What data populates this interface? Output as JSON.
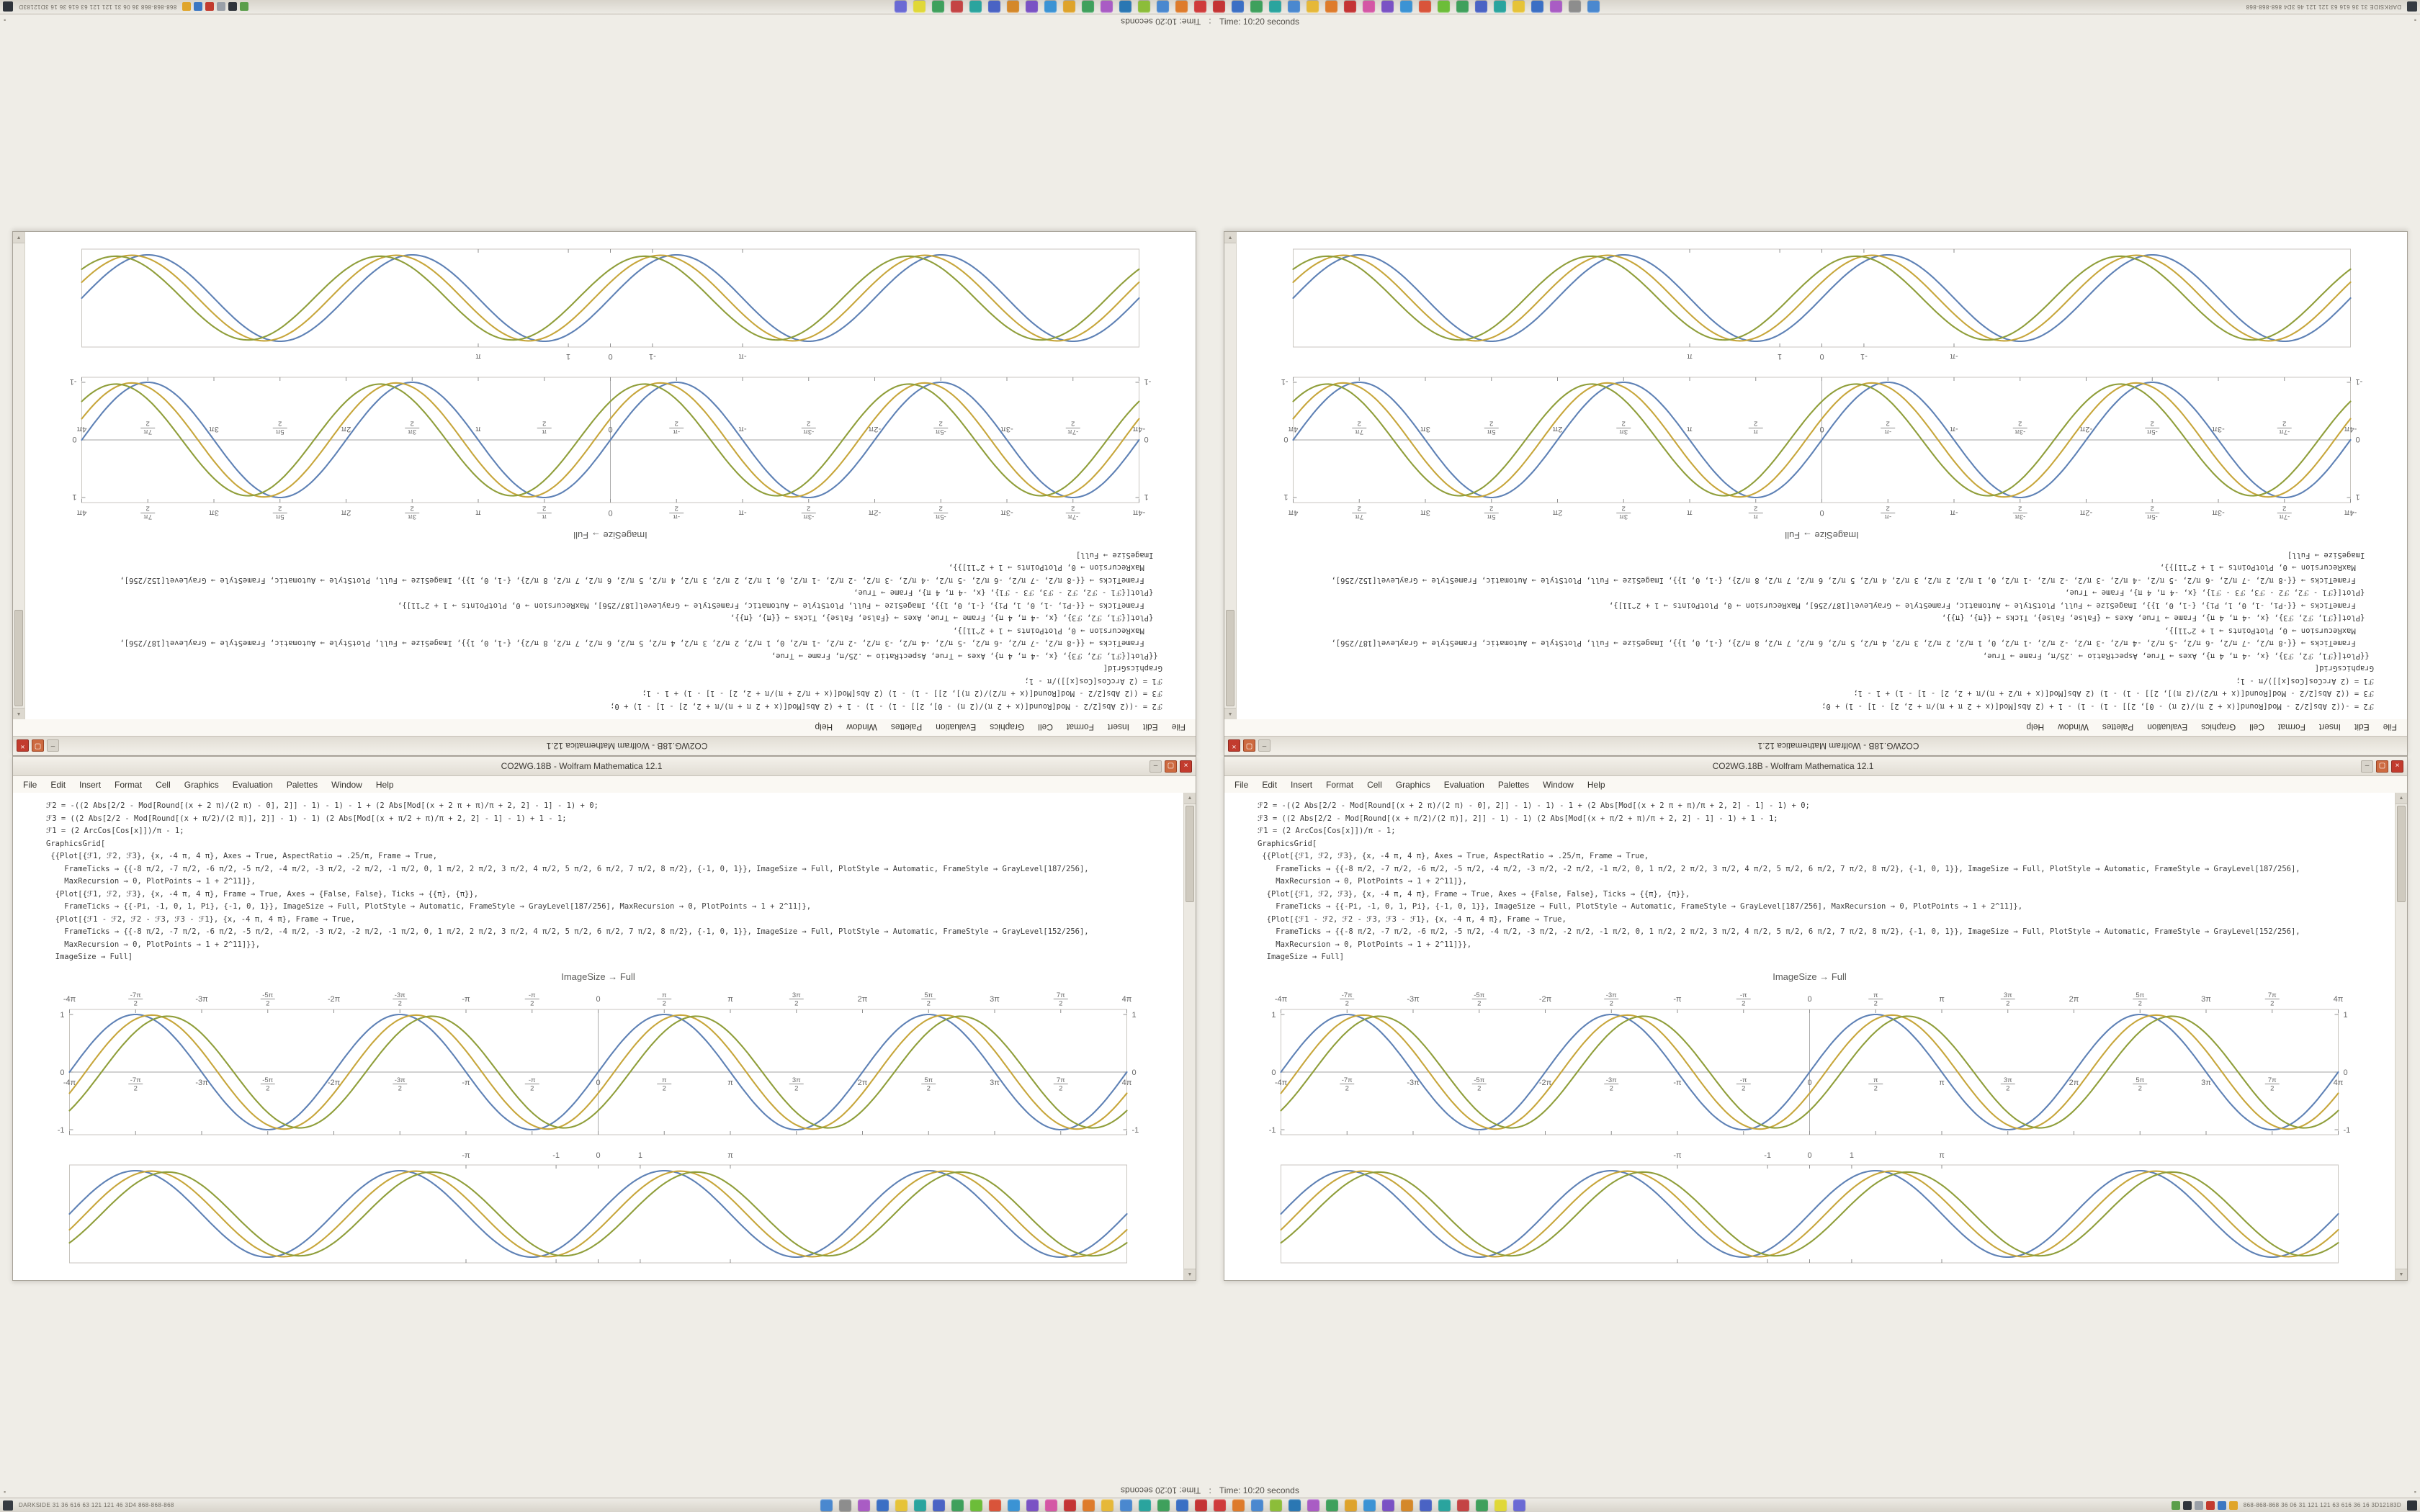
{
  "app": {
    "title": "CO2WG.18B - Wolfram Mathematica 12.1"
  },
  "window_buttons": {
    "minimize": "–",
    "maximize": "▢",
    "close": "×"
  },
  "scrollbar": {
    "up": "▲",
    "down": "▼"
  },
  "menu": {
    "items": [
      "File",
      "Edit",
      "Insert",
      "Format",
      "Cell",
      "Graphics",
      "Evaluation",
      "Palettes",
      "Window",
      "Help"
    ]
  },
  "notebook": {
    "caption": "ImageSize → Full",
    "code_lines": [
      "ℱ2 = -((2 Abs[2/2 - Mod[Round[(x + 2 π)/(2 π) - 0], 2]] - 1) - 1) - 1 + (2 Abs[Mod[(x + 2 π + π)/π + 2, 2] - 1] - 1) + 0;",
      "ℱ3 = ((2 Abs[2/2 - Mod[Round[(x + π/2)/(2 π)], 2]] - 1) - 1) (2 Abs[Mod[(x + π/2 + π)/π + 2, 2] - 1] - 1) + 1 - 1;",
      "ℱ1 = (2 ArcCos[Cos[x]])/π - 1;",
      "GraphicsGrid[",
      " {{Plot[{ℱ1, ℱ2, ℱ3}, {x, -4 π, 4 π}, Axes → True, AspectRatio → .25/π, Frame → True,",
      "    FrameTicks → {{-8 π/2, -7 π/2, -6 π/2, -5 π/2, -4 π/2, -3 π/2, -2 π/2, -1 π/2, 0, 1 π/2, 2 π/2, 3 π/2, 4 π/2, 5 π/2, 6 π/2, 7 π/2, 8 π/2}, {-1, 0, 1}}, ImageSize → Full, PlotStyle → Automatic, FrameStyle → GrayLevel[187/256],",
      "    MaxRecursion → 0, PlotPoints → 1 + 2^11]},",
      "  {Plot[{ℱ1, ℱ2, ℱ3}, {x, -4 π, 4 π}, Frame → True, Axes → {False, False}, Ticks → {{π}, {π}},",
      "    FrameTicks → {{-Pi, -1, 0, 1, Pi}, {-1, 0, 1}}, ImageSize → Full, PlotStyle → Automatic, FrameStyle → GrayLevel[187/256], MaxRecursion → 0, PlotPoints → 1 + 2^11]},",
      "  {Plot[{ℱ1 - ℱ2, ℱ2 - ℱ3, ℱ3 - ℱ1}, {x, -4 π, 4 π}, Frame → True,",
      "    FrameTicks → {{-8 π/2, -7 π/2, -6 π/2, -5 π/2, -4 π/2, -3 π/2, -2 π/2, -1 π/2, 0, 1 π/2, 2 π/2, 3 π/2, 4 π/2, 5 π/2, 6 π/2, 7 π/2, 8 π/2}, {-1, 0, 1}}, ImageSize → Full, PlotStyle → Automatic, FrameStyle → GrayLevel[152/256],",
      "    MaxRecursion → 0, PlotPoints → 1 + 2^11]}},",
      "  ImageSize → Full]"
    ]
  },
  "chart_data": [
    {
      "type": "line",
      "id": "axes-plot",
      "title": "",
      "xlabel": "",
      "ylabel": "",
      "x_range_pi": [
        -4,
        4
      ],
      "ylim": [
        -1.05,
        1.05
      ],
      "frame": true,
      "axes": true,
      "grid": false,
      "x_ticks": [
        {
          "k": -8,
          "label": "-4π"
        },
        {
          "k": -7,
          "num": "-7π",
          "den": "2"
        },
        {
          "k": -6,
          "label": "-3π"
        },
        {
          "k": -5,
          "num": "-5π",
          "den": "2"
        },
        {
          "k": -4,
          "label": "-2π"
        },
        {
          "k": -3,
          "num": "-3π",
          "den": "2"
        },
        {
          "k": -2,
          "label": "-π"
        },
        {
          "k": -1,
          "num": "-π",
          "den": "2"
        },
        {
          "k": 0,
          "label": "0"
        },
        {
          "k": 1,
          "num": "π",
          "den": "2"
        },
        {
          "k": 2,
          "label": "π"
        },
        {
          "k": 3,
          "num": "3π",
          "den": "2"
        },
        {
          "k": 4,
          "label": "2π"
        },
        {
          "k": 5,
          "num": "5π",
          "den": "2"
        },
        {
          "k": 6,
          "label": "3π"
        },
        {
          "k": 7,
          "num": "7π",
          "den": "2"
        },
        {
          "k": 8,
          "label": "4π"
        }
      ],
      "y_ticks": [
        {
          "v": 1,
          "label": "1"
        },
        {
          "v": 0,
          "label": "0"
        },
        {
          "v": -1,
          "label": "-1"
        }
      ],
      "series": [
        {
          "name": "sin-wave",
          "fn": "sin",
          "amp": 1.0,
          "phase": 0,
          "color": "#5e81b5"
        },
        {
          "name": "shifted-wave-1",
          "fn": "sin",
          "amp": 0.99,
          "phase": -0.38,
          "color": "#c7a63b"
        },
        {
          "name": "shifted-wave-2",
          "fn": "sin",
          "amp": 0.97,
          "phase": -0.76,
          "color": "#8f9e3a"
        }
      ]
    },
    {
      "type": "line",
      "id": "framed-plot",
      "title": "",
      "xlabel": "",
      "ylabel": "",
      "x_range_pi": [
        -4,
        4
      ],
      "ylim": [
        -1.15,
        1.15
      ],
      "frame": true,
      "axes": false,
      "grid": false,
      "x_ticks": [
        {
          "x": -3.14159,
          "label": "-π"
        },
        {
          "x": -1,
          "label": "-1"
        },
        {
          "x": 0,
          "label": "0"
        },
        {
          "x": 1,
          "label": "1"
        },
        {
          "x": 3.14159,
          "label": "π"
        }
      ],
      "series": [
        {
          "name": "sin-wave",
          "fn": "sin",
          "amp": 1.0,
          "phase": 0,
          "color": "#5e81b5"
        },
        {
          "name": "shifted-wave-1",
          "fn": "sin",
          "amp": 0.99,
          "phase": -0.38,
          "color": "#c7a63b"
        },
        {
          "name": "shifted-wave-2",
          "fn": "sin",
          "amp": 0.97,
          "phase": -0.76,
          "color": "#8f9e3a"
        }
      ]
    }
  ],
  "status": {
    "time_text": "Time: 10:20 seconds",
    "separator": ":",
    "edge": "▪"
  },
  "taskbar": {
    "left_text": "DARKSIDE 31 36 616 63 121 121 46 3D4 868-868-868",
    "right_text": "868-868-868 36 06 31 121 121 63 616 36 16 3D12183D",
    "app_icon_colors": [
      "#4a88cf",
      "#8d8d8d",
      "#a95cc4",
      "#3b6fc4",
      "#e6c338",
      "#2aa49e",
      "#4a63c4",
      "#3fa05c",
      "#6cbd39",
      "#d9543a",
      "#3b93d4",
      "#7a52c4",
      "#d457a5",
      "#c43434",
      "#de7b2b",
      "#e6b838",
      "#4a88cf",
      "#2aa49e",
      "#3fa05c",
      "#3b6fc4",
      "#c43434",
      "#cf3b3b",
      "#de7b2b",
      "#4a88cf",
      "#8cbd39",
      "#2a77b3",
      "#a95cc4",
      "#3fa05c",
      "#dea32b",
      "#3b93d4",
      "#7a52c4",
      "#d4882a",
      "#4a63c4",
      "#2aa49e",
      "#c44444",
      "#3fa05c",
      "#e0d838",
      "#6a6ad4"
    ],
    "tray_icon_colors": [
      "#5a9e4a",
      "#2f343b",
      "#9aa0a8",
      "#c23b2e",
      "#3b77c2",
      "#e0a52a"
    ]
  },
  "plot_style": {
    "frame_color": "#c9c6c0",
    "axis_color": "#a3a3a3",
    "tick_color": "#8f8f8f",
    "label_color": "#666666"
  }
}
